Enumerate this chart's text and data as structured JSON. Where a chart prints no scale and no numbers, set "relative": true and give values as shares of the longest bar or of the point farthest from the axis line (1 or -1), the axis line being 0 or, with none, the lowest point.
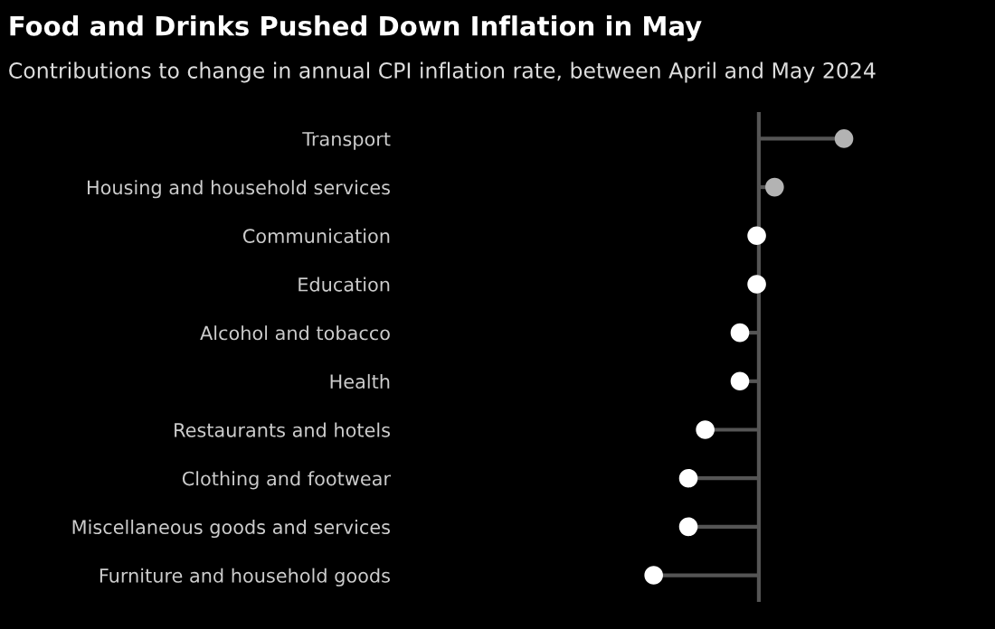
{
  "chart_data": {
    "type": "lollipop",
    "title": "Food and Drinks Pushed Down Inflation in May",
    "subtitle": "Contributions to change in annual CPI inflation rate, between April and May 2024",
    "orientation": "horizontal",
    "relative": true,
    "marker": "circle",
    "grid": false,
    "legend": false,
    "categories": [
      "Transport",
      "Housing and household services",
      "Communication",
      "Education",
      "Alcohol and tobacco",
      "Health",
      "Restaurants and hotels",
      "Clothing and footwear",
      "Miscellaneous goods and services",
      "Furniture and household goods"
    ],
    "values": [
      0.81,
      0.15,
      -0.02,
      -0.02,
      -0.18,
      -0.18,
      -0.51,
      -0.67,
      -0.67,
      -1
    ],
    "colors": [
      "#b3b3b3",
      "#b3b3b3",
      "#ffffff",
      "#ffffff",
      "#ffffff",
      "#ffffff",
      "#ffffff",
      "#ffffff",
      "#ffffff",
      "#ffffff"
    ]
  }
}
